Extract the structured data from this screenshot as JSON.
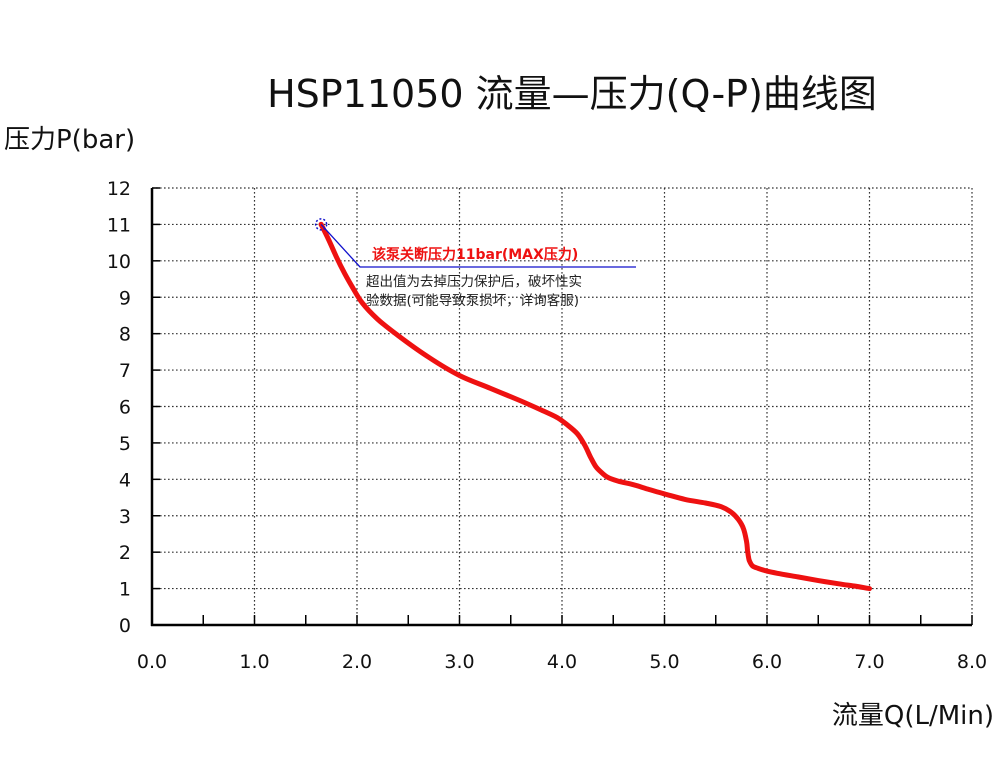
{
  "chart_data": {
    "type": "line",
    "title": "HSP11050 流量—压力(Q-P)曲线图",
    "xlabel": "流量Q(L/Min)",
    "ylabel": "压力P(bar)",
    "xlim": [
      0,
      8
    ],
    "ylim": [
      0,
      12
    ],
    "x_ticks": [
      "0.0",
      "1.0",
      "2.0",
      "3.0",
      "4.0",
      "5.0",
      "6.0",
      "7.0",
      "8.0"
    ],
    "y_ticks": [
      "0",
      "1",
      "2",
      "3",
      "4",
      "5",
      "6",
      "7",
      "8",
      "9",
      "10",
      "11",
      "12"
    ],
    "grid": true,
    "series": [
      {
        "color": "#ee1111",
        "x": [
          1.65,
          1.72,
          1.8,
          1.88,
          1.95,
          2.05,
          2.2,
          2.4,
          2.7,
          3.0,
          3.3,
          3.6,
          3.8,
          3.95,
          4.05,
          4.15,
          4.22,
          4.28,
          4.33,
          4.38,
          4.45,
          4.55,
          4.7,
          4.85,
          5.0,
          5.2,
          5.4,
          5.55,
          5.65,
          5.72,
          5.77,
          5.8,
          5.81,
          5.82,
          5.83,
          5.86,
          5.92,
          6.0,
          6.1,
          6.3,
          6.5,
          6.7,
          6.85,
          7.0
        ],
        "y": [
          11.0,
          10.6,
          10.1,
          9.65,
          9.3,
          8.85,
          8.4,
          7.95,
          7.35,
          6.85,
          6.5,
          6.15,
          5.9,
          5.7,
          5.5,
          5.25,
          4.95,
          4.6,
          4.35,
          4.2,
          4.05,
          3.95,
          3.85,
          3.72,
          3.6,
          3.45,
          3.35,
          3.25,
          3.1,
          2.9,
          2.65,
          2.3,
          2.05,
          1.85,
          1.75,
          1.62,
          1.55,
          1.48,
          1.42,
          1.32,
          1.22,
          1.13,
          1.07,
          1.0
        ]
      }
    ],
    "annotation": {
      "marker": {
        "x": 1.65,
        "y": 11.0
      },
      "title": "该泵关断压力11bar(MAX压力)",
      "note_lines": [
        "超出值为去掉压力保护后，破坏性实",
        "验数据(可能导致泵损坏，详询客服)"
      ],
      "title_color": "#ee1111",
      "leader_color": "#1111cc"
    }
  }
}
